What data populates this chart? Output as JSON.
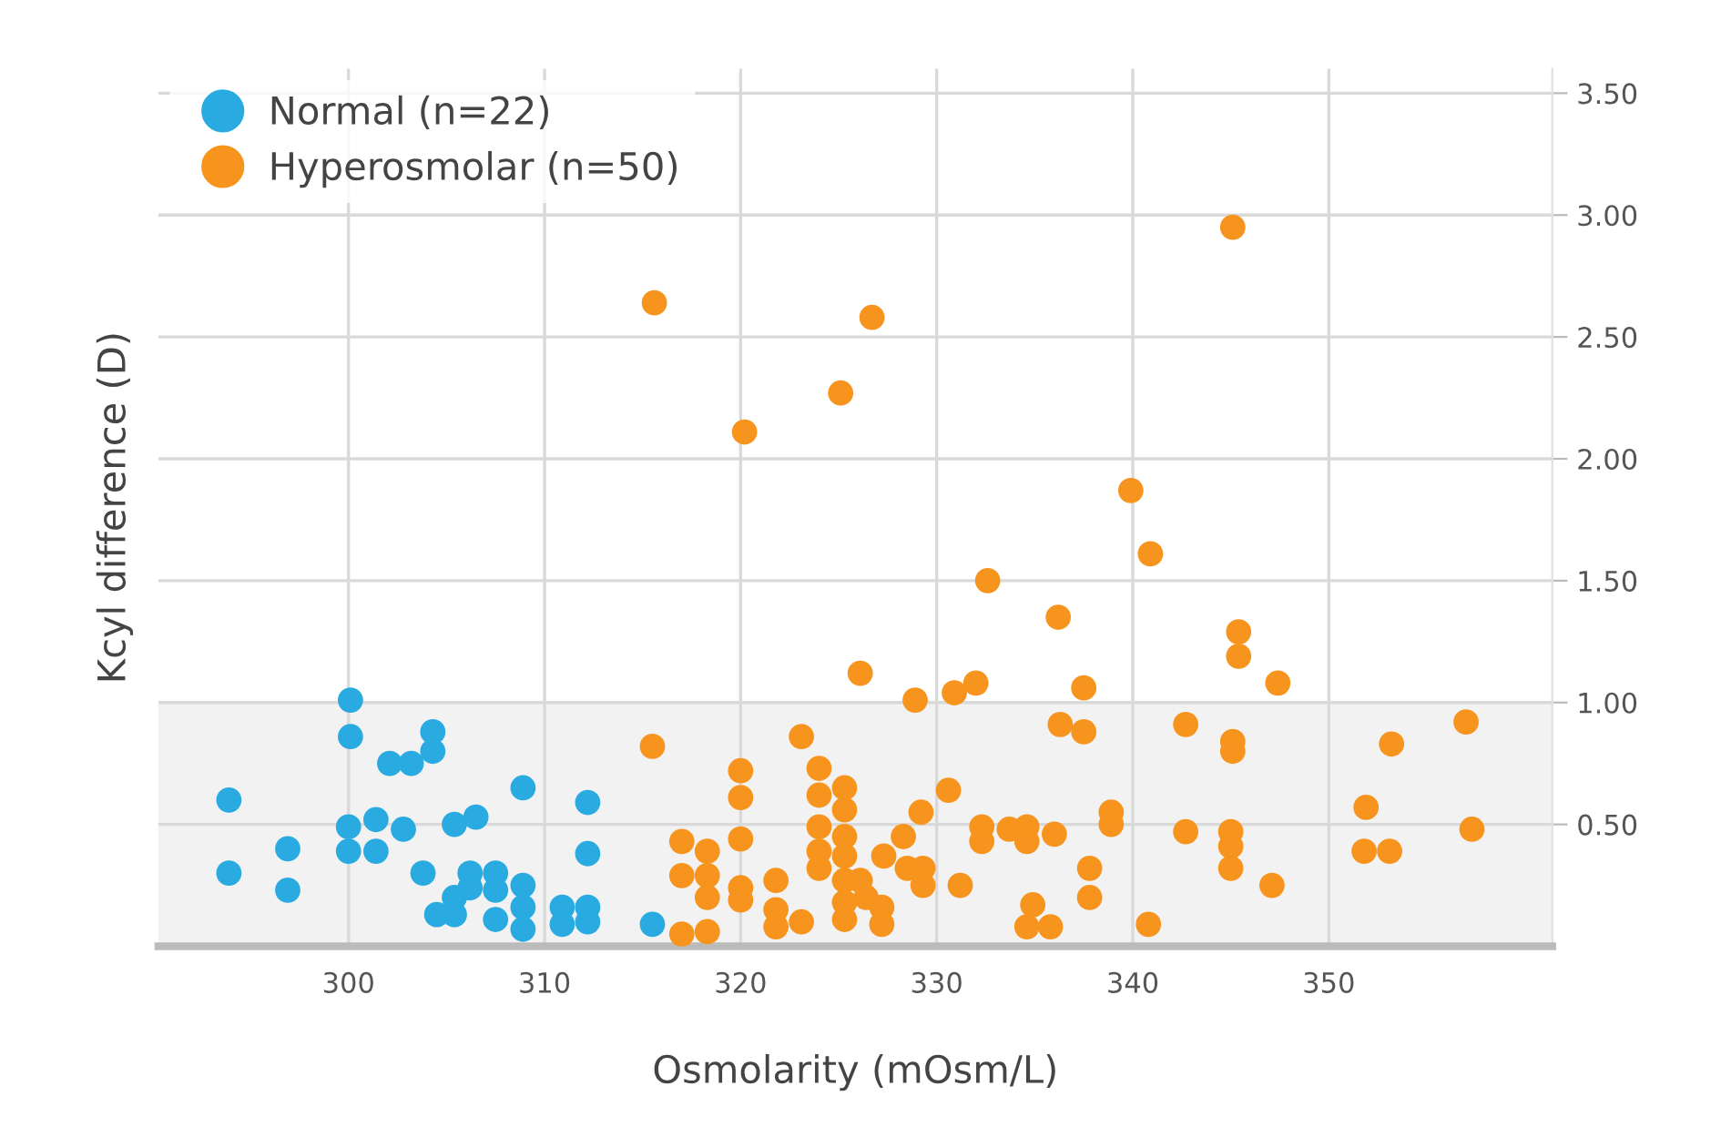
{
  "chart_data": {
    "type": "scatter",
    "xlabel": "Osmolarity (mOsm/L)",
    "ylabel": "Kcyl difference (D)",
    "xlim": [
      290.3,
      361.4
    ],
    "ylim": [
      0,
      3.6
    ],
    "xticks": [
      300,
      310,
      320,
      330,
      340,
      350
    ],
    "yticks": [
      {
        "value": 0.5,
        "label": "0.50"
      },
      {
        "value": 1.0,
        "label": "1.00"
      },
      {
        "value": 1.5,
        "label": "1.50"
      },
      {
        "value": 2.0,
        "label": "2.00"
      },
      {
        "value": 2.5,
        "label": "2.50"
      },
      {
        "value": 3.0,
        "label": "3.00"
      },
      {
        "value": 3.5,
        "label": "3.50"
      }
    ],
    "grid": true,
    "legend": "top left",
    "marker": "circle",
    "bands": [
      {
        "axis": "y",
        "from": 0,
        "to": 1.0,
        "color": "#f2f2f2"
      }
    ],
    "series": [
      {
        "name": "Normal (n=22)",
        "color": "#29abe2",
        "x": [
          293.9,
          293.9,
          296.9,
          296.9,
          300.1,
          300.1,
          300.0,
          300.0,
          301.4,
          301.4,
          302.1,
          303.2,
          302.8,
          304.3,
          304.3,
          303.8,
          304.5,
          305.4,
          305.4,
          306.2,
          306.2,
          305.4,
          306.5,
          307.5,
          307.5,
          307.5,
          308.9,
          308.9,
          308.9,
          308.9,
          310.9,
          310.9,
          312.2,
          312.2,
          312.2,
          312.2,
          315.5
        ],
        "values": [
          0.6,
          0.3,
          0.4,
          0.23,
          1.01,
          0.86,
          0.49,
          0.39,
          0.52,
          0.39,
          0.75,
          0.75,
          0.48,
          0.88,
          0.8,
          0.3,
          0.13,
          0.13,
          0.2,
          0.3,
          0.24,
          0.5,
          0.53,
          0.3,
          0.23,
          0.11,
          0.65,
          0.25,
          0.16,
          0.07,
          0.16,
          0.09,
          0.59,
          0.38,
          0.16,
          0.1,
          0.09
        ]
      },
      {
        "name": "Hyperosmolar (n=50)",
        "color": "#f7941d",
        "x": [
          315.5,
          317.0,
          317.0,
          317.0,
          318.3,
          318.3,
          318.3,
          318.3,
          320.0,
          320.0,
          320.0,
          320.0,
          320.0,
          321.8,
          321.8,
          321.8,
          323.1,
          323.1,
          324.0,
          324.0,
          324.0,
          324.0,
          324.0,
          325.3,
          325.3,
          325.3,
          325.3,
          325.3,
          325.3,
          325.3,
          326.1,
          326.4,
          327.2,
          327.2,
          327.3,
          328.3,
          328.5,
          329.2,
          329.3,
          329.3,
          328.9,
          326.1,
          330.9,
          332.0,
          337.5,
          336.3,
          337.5,
          330.6,
          332.3,
          332.3,
          333.7,
          334.6,
          334.6,
          336.0,
          338.9,
          338.9,
          337.8,
          337.8,
          331.2,
          334.9,
          334.6,
          335.8,
          340.8,
          342.7,
          345.1,
          345.1,
          342.7,
          345.0,
          345.0,
          345.0,
          347.1,
          347.4,
          351.9,
          351.8,
          353.1,
          353.2,
          357.0,
          357.3,
          315.6,
          320.2,
          325.1,
          326.7,
          345.1,
          339.9,
          340.9,
          332.6,
          336.2,
          345.4,
          345.4
        ],
        "values": [
          0.82,
          0.43,
          0.29,
          0.05,
          0.39,
          0.29,
          0.2,
          0.06,
          0.72,
          0.61,
          0.44,
          0.24,
          0.19,
          0.27,
          0.15,
          0.08,
          0.1,
          0.86,
          0.73,
          0.62,
          0.49,
          0.39,
          0.32,
          0.65,
          0.56,
          0.45,
          0.37,
          0.27,
          0.18,
          0.11,
          0.27,
          0.2,
          0.16,
          0.09,
          0.37,
          0.45,
          0.32,
          0.55,
          0.32,
          0.25,
          1.01,
          1.12,
          1.04,
          1.08,
          1.06,
          0.91,
          0.88,
          0.64,
          0.49,
          0.43,
          0.48,
          0.49,
          0.43,
          0.46,
          0.55,
          0.5,
          0.32,
          0.2,
          0.25,
          0.17,
          0.08,
          0.08,
          0.09,
          0.91,
          0.84,
          0.8,
          0.47,
          0.47,
          0.41,
          0.32,
          0.25,
          1.08,
          0.57,
          0.39,
          0.39,
          0.83,
          0.92,
          0.48,
          2.64,
          2.11,
          2.27,
          2.58,
          2.95,
          1.87,
          1.61,
          1.5,
          1.35,
          1.29,
          1.19
        ]
      }
    ]
  }
}
